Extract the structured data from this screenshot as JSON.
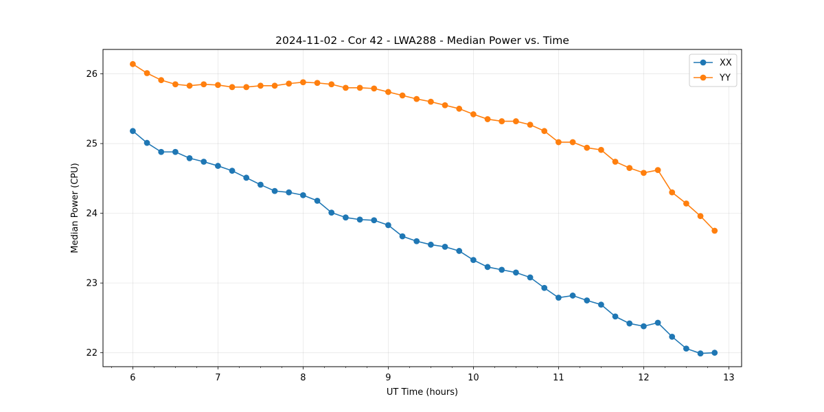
{
  "chart_data": {
    "type": "line",
    "title": "2024-11-02 - Cor 42 - LWA288 - Median Power vs. Time",
    "xlabel": "UT Time (hours)",
    "ylabel": "Median Power (CPU)",
    "xlim": [
      5.65,
      13.15
    ],
    "ylim": [
      21.8,
      26.35
    ],
    "xticks": [
      6,
      7,
      8,
      9,
      10,
      11,
      12,
      13
    ],
    "yticks": [
      22,
      23,
      24,
      25,
      26
    ],
    "grid": true,
    "legend_position": "top-right",
    "x": [
      6.0,
      6.1667,
      6.3333,
      6.5,
      6.6667,
      6.8333,
      7.0,
      7.1667,
      7.3333,
      7.5,
      7.6667,
      7.8333,
      8.0,
      8.1667,
      8.3333,
      8.5,
      8.6667,
      8.8333,
      9.0,
      9.1667,
      9.3333,
      9.5,
      9.6667,
      9.8333,
      10.0,
      10.1667,
      10.3333,
      10.5,
      10.6667,
      10.8333,
      11.0,
      11.1667,
      11.3333,
      11.5,
      11.6667,
      11.8333,
      12.0,
      12.1667,
      12.3333,
      12.5,
      12.6667,
      12.8333
    ],
    "series": [
      {
        "name": "XX",
        "color": "#1f77b4",
        "values": [
          25.18,
          25.01,
          24.88,
          24.88,
          24.79,
          24.74,
          24.68,
          24.61,
          24.51,
          24.41,
          24.32,
          24.3,
          24.26,
          24.18,
          24.01,
          23.94,
          23.91,
          23.9,
          23.83,
          23.67,
          23.6,
          23.55,
          23.52,
          23.46,
          23.33,
          23.23,
          23.19,
          23.15,
          23.08,
          22.93,
          22.79,
          22.82,
          22.75,
          22.69,
          22.52,
          22.42,
          22.38,
          22.43,
          22.23,
          22.06,
          21.99,
          22.0
        ]
      },
      {
        "name": "YY",
        "color": "#ff7f0e",
        "values": [
          26.14,
          26.01,
          25.91,
          25.85,
          25.83,
          25.85,
          25.84,
          25.81,
          25.81,
          25.83,
          25.83,
          25.86,
          25.88,
          25.87,
          25.85,
          25.8,
          25.8,
          25.79,
          25.74,
          25.69,
          25.64,
          25.6,
          25.55,
          25.5,
          25.42,
          25.35,
          25.32,
          25.32,
          25.27,
          25.18,
          25.02,
          25.02,
          24.94,
          24.91,
          24.74,
          24.65,
          24.58,
          24.62,
          24.3,
          24.14,
          23.96,
          23.75
        ]
      }
    ]
  }
}
